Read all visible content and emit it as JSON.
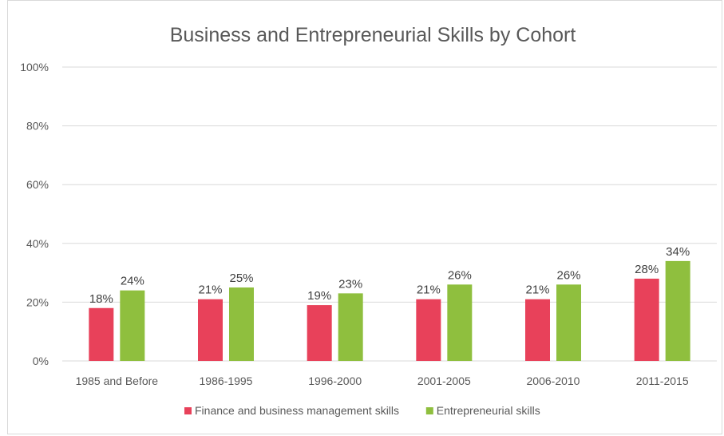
{
  "chart_data": {
    "type": "bar",
    "title": "Business and Entrepreneurial Skills by Cohort",
    "xlabel": "",
    "ylabel": "",
    "categories": [
      "1985 and Before",
      "1986-1995",
      "1996-2000",
      "2001-2005",
      "2006-2010",
      "2011-2015"
    ],
    "series": [
      {
        "name": "Finance and business management skills",
        "color": "#e8415a",
        "values": [
          18,
          21,
          19,
          21,
          21,
          28
        ],
        "labels": [
          "18%",
          "21%",
          "19%",
          "21%",
          "21%",
          "28%"
        ]
      },
      {
        "name": "Entrepreneurial skills",
        "color": "#8fbf3e",
        "values": [
          24,
          25,
          23,
          26,
          26,
          34
        ],
        "labels": [
          "24%",
          "25%",
          "23%",
          "26%",
          "26%",
          "34%"
        ]
      }
    ],
    "ylim": [
      0,
      100
    ],
    "yticks": [
      0,
      20,
      40,
      60,
      80,
      100
    ],
    "ytick_labels": [
      "0%",
      "20%",
      "40%",
      "60%",
      "80%",
      "100%"
    ],
    "grid": true,
    "legend": "bottom"
  }
}
